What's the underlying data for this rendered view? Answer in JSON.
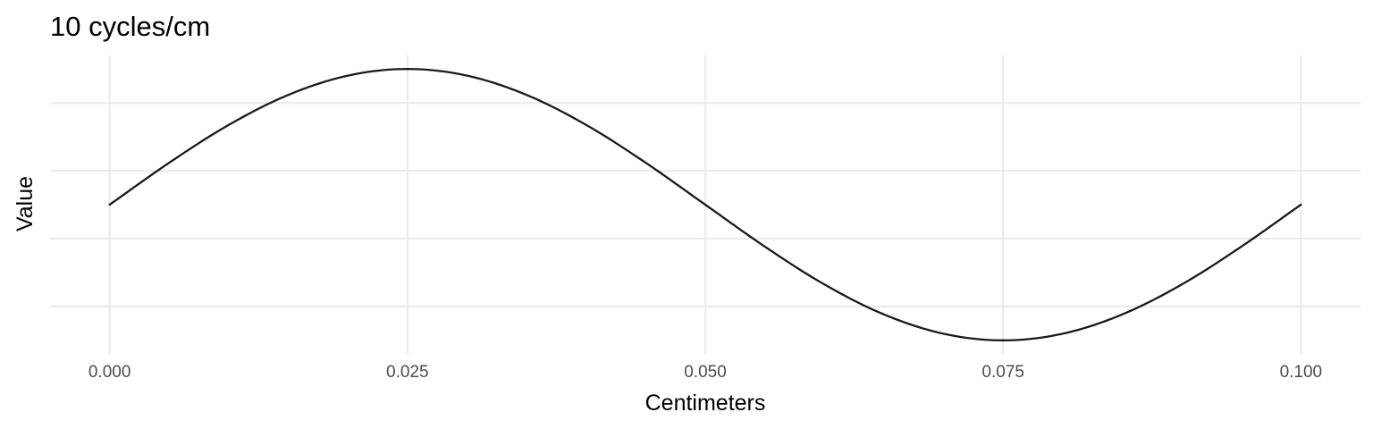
{
  "chart_data": {
    "type": "line",
    "title": "10 cycles/cm",
    "xlabel": "Centimeters",
    "ylabel": "Value",
    "xlim": [
      -0.005,
      0.105
    ],
    "ylim": [
      -1.1,
      1.1
    ],
    "x_ticks": [
      0.0,
      0.025,
      0.05,
      0.075,
      0.1
    ],
    "x_tick_labels": [
      "0.000",
      "0.025",
      "0.050",
      "0.075",
      "0.100"
    ],
    "y_ticks": [
      -0.75,
      -0.25,
      0.25,
      0.75
    ],
    "y_tick_labels": [],
    "grid": true,
    "x_minor_grid": false,
    "y_minor_grid": true,
    "line_color": "#1a1a1a",
    "grid_color": "#ebebeb",
    "series": [
      {
        "x": [
          0.0,
          0.005,
          0.01,
          0.015,
          0.02,
          0.025,
          0.03,
          0.035,
          0.04,
          0.045,
          0.05,
          0.055,
          0.06,
          0.065,
          0.07,
          0.075,
          0.08,
          0.085,
          0.09,
          0.095,
          0.1
        ],
        "y": [
          0.0,
          0.309,
          0.588,
          0.809,
          0.951,
          1.0,
          0.951,
          0.809,
          0.588,
          0.309,
          0.0,
          -0.309,
          -0.588,
          -0.809,
          -0.951,
          -1.0,
          -0.951,
          -0.809,
          -0.588,
          -0.309,
          0.0
        ]
      }
    ]
  }
}
